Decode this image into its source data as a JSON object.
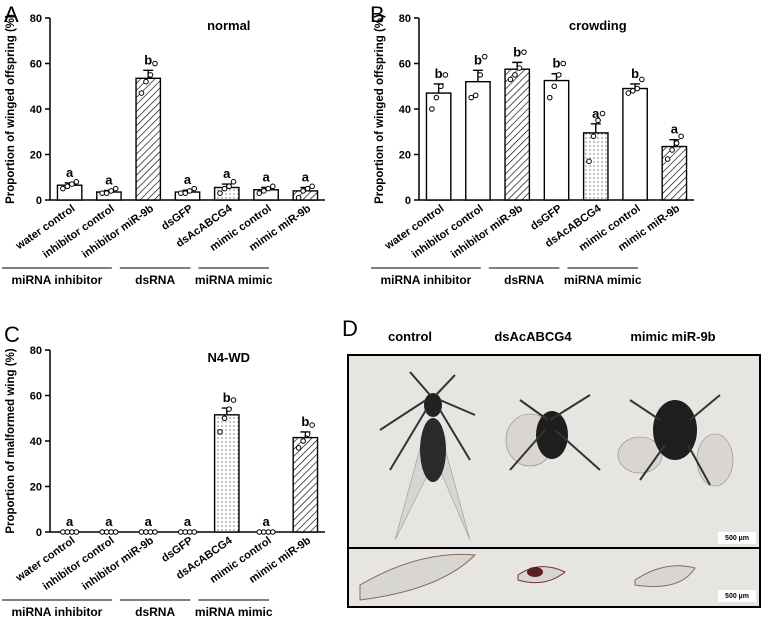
{
  "panel_labels": [
    "A",
    "B",
    "C",
    "D"
  ],
  "photo": {
    "labels": [
      "control",
      "dsAcABCG4",
      "mimic miR-9b"
    ],
    "scale_bars": [
      "500 µm",
      "500 µm"
    ]
  },
  "chart_data": [
    {
      "type": "bar",
      "title": "normal",
      "y_label": "Proportion of winged offspring (%)",
      "categories": [
        "water control",
        "inhibitor control",
        "inhibitor miR-9b",
        "dsGFP",
        "dsAcABCG4",
        "mimic control",
        "mimic miR-9b"
      ],
      "values": [
        6.5,
        3.5,
        53.5,
        3.5,
        5.5,
        4.5,
        4.0
      ],
      "errors": [
        1.0,
        0.7,
        3.5,
        0.8,
        1.5,
        1.0,
        1.5
      ],
      "points": [
        [
          5,
          6,
          7,
          8
        ],
        [
          3,
          3,
          4,
          5
        ],
        [
          47,
          52,
          55,
          60
        ],
        [
          3,
          3,
          4,
          5
        ],
        [
          3,
          5,
          6,
          8
        ],
        [
          3,
          4,
          5,
          6
        ],
        [
          1,
          4,
          5,
          6
        ]
      ],
      "significance": [
        "a",
        "a",
        "b",
        "a",
        "a",
        "a",
        "a"
      ],
      "patterns": [
        "none",
        "none",
        "hatch",
        "none",
        "dots",
        "none",
        "hatch"
      ],
      "groups": [
        {
          "name": "miRNA inhibitor",
          "size": 3
        },
        {
          "name": "dsRNA",
          "size": 2
        },
        {
          "name": "miRNA mimic",
          "size": 2
        }
      ],
      "ylim": [
        0,
        80
      ],
      "yticks": [
        0,
        20,
        40,
        60,
        80
      ],
      "color": "#000000"
    },
    {
      "type": "bar",
      "title": "crowding",
      "y_label": "Proportion of winged offspring (%)",
      "categories": [
        "water control",
        "inhibitor control",
        "inhibitor miR-9b",
        "dsGFP",
        "dsAcABCG4",
        "mimic control",
        "mimic miR-9b"
      ],
      "values": [
        47,
        52,
        57.5,
        52.5,
        29.5,
        49,
        23.5
      ],
      "errors": [
        4,
        5,
        3,
        3,
        4,
        2,
        3
      ],
      "points": [
        [
          40,
          45,
          50,
          55
        ],
        [
          45,
          46,
          55,
          63
        ],
        [
          53,
          55,
          58,
          65
        ],
        [
          45,
          50,
          55,
          60
        ],
        [
          17,
          28,
          35,
          38
        ],
        [
          47,
          48,
          49,
          53
        ],
        [
          18,
          22,
          25,
          28
        ]
      ],
      "significance": [
        "b",
        "b",
        "b",
        "b",
        "a",
        "b",
        "a"
      ],
      "patterns": [
        "none",
        "none",
        "hatch",
        "none",
        "dots",
        "none",
        "hatch"
      ],
      "groups": [
        {
          "name": "miRNA inhibitor",
          "size": 3
        },
        {
          "name": "dsRNA",
          "size": 2
        },
        {
          "name": "miRNA mimic",
          "size": 2
        }
      ],
      "ylim": [
        0,
        80
      ],
      "yticks": [
        0,
        20,
        40,
        60,
        80
      ],
      "color": "#000000"
    },
    {
      "type": "bar",
      "title": "N4-WD",
      "y_label": "Proportion of malformed wing (%)",
      "categories": [
        "water control",
        "inhibitor control",
        "inhibitor miR-9b",
        "dsGFP",
        "dsAcABCG4",
        "mimic control",
        "mimic miR-9b"
      ],
      "values": [
        0,
        0,
        0,
        0,
        51.5,
        0,
        41.5
      ],
      "errors": [
        0,
        0,
        0,
        0,
        3,
        0,
        2.5
      ],
      "points": [
        [
          0,
          0,
          0,
          0
        ],
        [
          0,
          0,
          0,
          0
        ],
        [
          0,
          0,
          0,
          0
        ],
        [
          0,
          0,
          0,
          0
        ],
        [
          44,
          50,
          54,
          58
        ],
        [
          0,
          0,
          0,
          0
        ],
        [
          37,
          40,
          43,
          47
        ]
      ],
      "significance": [
        "a",
        "a",
        "a",
        "a",
        "b",
        "a",
        "b"
      ],
      "patterns": [
        "none",
        "none",
        "none",
        "none",
        "dots",
        "none",
        "hatch"
      ],
      "groups": [
        {
          "name": "miRNA inhibitor",
          "size": 3
        },
        {
          "name": "dsRNA",
          "size": 2
        },
        {
          "name": "miRNA mimic",
          "size": 2
        }
      ],
      "ylim": [
        0,
        80
      ],
      "yticks": [
        0,
        20,
        40,
        60,
        80
      ],
      "color": "#000000"
    }
  ]
}
